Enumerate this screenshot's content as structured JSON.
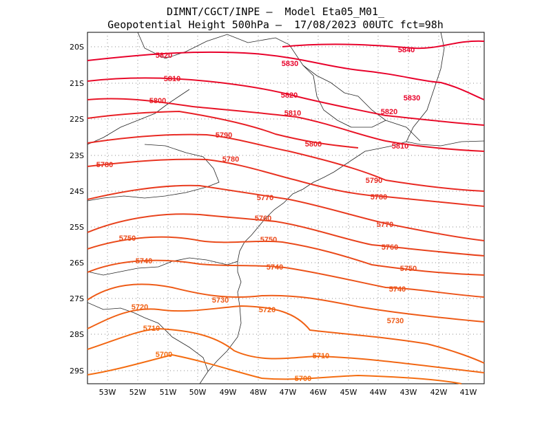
{
  "title_line1": "DIMNT/CGCT/INPE –  Model Eta05_M01_",
  "title_line2": "Geopotential Height 500hPa –  17/08/2023 00UTC fct=98h",
  "axes": {
    "x_ticks": [
      "53W",
      "52W",
      "51W",
      "50W",
      "49W",
      "48W",
      "47W",
      "46W",
      "45W",
      "44W",
      "43W",
      "42W",
      "41W"
    ],
    "y_ticks": [
      "20S",
      "21S",
      "22S",
      "23S",
      "24S",
      "25S",
      "26S",
      "27S",
      "28S",
      "29S"
    ]
  },
  "contours": [
    {
      "value": "5840",
      "color": "#e8002a"
    },
    {
      "value": "5830",
      "color": "#e8002a"
    },
    {
      "value": "5820",
      "color": "#e80a28"
    },
    {
      "value": "5810",
      "color": "#e81426"
    },
    {
      "value": "5800",
      "color": "#e81e24"
    },
    {
      "value": "5790",
      "color": "#e82822"
    },
    {
      "value": "5780",
      "color": "#e83220"
    },
    {
      "value": "5770",
      "color": "#e83a1e"
    },
    {
      "value": "5760",
      "color": "#e8421c"
    },
    {
      "value": "5750",
      "color": "#ea4a1a"
    },
    {
      "value": "5740",
      "color": "#ec5218"
    },
    {
      "value": "5730",
      "color": "#ee5a16"
    },
    {
      "value": "5720",
      "color": "#f06014"
    },
    {
      "value": "5710",
      "color": "#f26612"
    },
    {
      "value": "5700",
      "color": "#f46c10"
    }
  ],
  "chart_data": {
    "type": "contour_map",
    "field": "Geopotential Height 500hPa",
    "lon_range": [
      -53.6,
      -40.5
    ],
    "lat_range": [
      -29.4,
      -19.9
    ],
    "contour_interval": 10,
    "contour_levels": [
      5700,
      5710,
      5720,
      5730,
      5740,
      5750,
      5760,
      5770,
      5780,
      5790,
      5800,
      5810,
      5820,
      5830,
      5840
    ],
    "grid": "dotted"
  }
}
